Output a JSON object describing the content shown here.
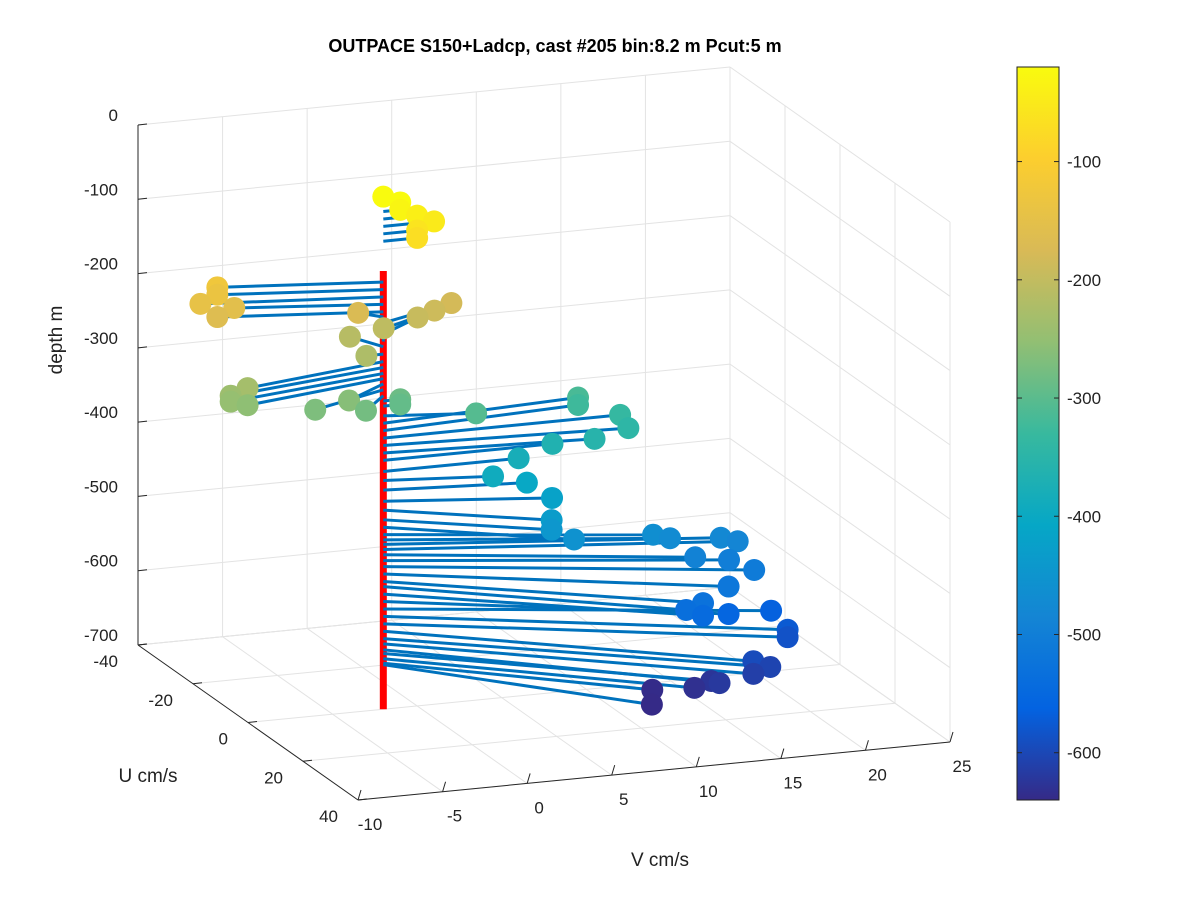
{
  "chart_data": {
    "type": "scatter",
    "title": "OUTPACE S150+Ladcp, cast #205 bin:8.2 m  Pcut:5 m",
    "xlabel": "V cm/s",
    "ylabel": "U cm/s",
    "zlabel": "depth m",
    "xlim": [
      -10,
      25
    ],
    "ylim": [
      -40,
      40
    ],
    "zlim": [
      -700,
      0
    ],
    "xticks": [
      "-10",
      "-5",
      "0",
      "5",
      "10",
      "15",
      "20",
      "25"
    ],
    "yticks": [
      "-40",
      "-20",
      "0",
      "20",
      "40"
    ],
    "zticks": [
      "0",
      "-100",
      "-200",
      "-300",
      "-400",
      "-500",
      "-600",
      "-700"
    ],
    "colorbar": {
      "range": [
        -640,
        -20
      ],
      "ticks": [
        "-100",
        "-200",
        "-300",
        "-400",
        "-500",
        "-600"
      ]
    },
    "grid": true,
    "reference_line": {
      "color": "#ff0000",
      "z": [
        -700,
        -110
      ],
      "v": -2,
      "u": 0
    },
    "profile_color": "#0072bd",
    "series": [
      {
        "points": [
          {
            "z": -10,
            "v": -2,
            "u": 0
          },
          {
            "z": -20,
            "v": -1,
            "u": 0
          },
          {
            "z": -30,
            "v": -1,
            "u": 0
          },
          {
            "z": -40,
            "v": 0,
            "u": 0
          },
          {
            "z": -50,
            "v": 1,
            "u": 0
          },
          {
            "z": -60,
            "v": 0,
            "u": 0
          },
          {
            "z": -70,
            "v": 0,
            "u": 0
          },
          {
            "z": -125,
            "v": -11,
            "u": -5
          },
          {
            "z": -135,
            "v": -11,
            "u": -5
          },
          {
            "z": -145,
            "v": -12,
            "u": -5
          },
          {
            "z": -155,
            "v": -10,
            "u": -5
          },
          {
            "z": -165,
            "v": -11,
            "u": -5
          },
          {
            "z": -172,
            "v": -3,
            "u": -3
          },
          {
            "z": -180,
            "v": 3,
            "u": -6
          },
          {
            "z": -188,
            "v": 2,
            "u": -6
          },
          {
            "z": -195,
            "v": 1,
            "u": -6
          },
          {
            "z": -205,
            "v": -1,
            "u": -6
          },
          {
            "z": -212,
            "v": -3,
            "u": -6
          },
          {
            "z": -222,
            "v": -3,
            "u": 0
          },
          {
            "z": -232,
            "v": -11,
            "u": 6
          },
          {
            "z": -240,
            "v": -12,
            "u": 6
          },
          {
            "z": -248,
            "v": -12,
            "u": 6
          },
          {
            "z": -255,
            "v": -11,
            "u": 6
          },
          {
            "z": -262,
            "v": -5,
            "u": 6
          },
          {
            "z": -270,
            "v": -7,
            "u": 6
          },
          {
            "z": -278,
            "v": -4,
            "u": 6
          },
          {
            "z": -285,
            "v": -1,
            "u": 0
          },
          {
            "z": -292,
            "v": -1,
            "u": 0
          },
          {
            "z": -305,
            "v": 3,
            "u": 3
          },
          {
            "z": -315,
            "v": 10,
            "u": -3
          },
          {
            "z": -325,
            "v": 10,
            "u": -3
          },
          {
            "z": -335,
            "v": 12,
            "u": 0
          },
          {
            "z": -345,
            "v": 12,
            "u": 3
          },
          {
            "z": -355,
            "v": 10,
            "u": 3
          },
          {
            "z": -365,
            "v": 8,
            "u": 0
          },
          {
            "z": -380,
            "v": 6,
            "u": 0
          },
          {
            "z": -392,
            "v": 4,
            "u": 3
          },
          {
            "z": -405,
            "v": 6,
            "u": 3
          },
          {
            "z": -420,
            "v": 7,
            "u": 6
          },
          {
            "z": -432,
            "v": 6,
            "u": 12
          },
          {
            "z": -445,
            "v": 6,
            "u": 12
          },
          {
            "z": -455,
            "v": 7,
            "u": 14
          },
          {
            "z": -465,
            "v": 12,
            "u": 12
          },
          {
            "z": -472,
            "v": 13,
            "u": 12
          },
          {
            "z": -478,
            "v": 16,
            "u": 12
          },
          {
            "z": -485,
            "v": 17,
            "u": 12
          },
          {
            "z": -492,
            "v": 14,
            "u": 15
          },
          {
            "z": -500,
            "v": 16,
            "u": 15
          },
          {
            "z": -508,
            "v": 17,
            "u": 18
          },
          {
            "z": -518,
            "v": 15,
            "u": 21
          },
          {
            "z": -528,
            "v": 13,
            "u": 24
          },
          {
            "z": -535,
            "v": 12,
            "u": 24
          },
          {
            "z": -545,
            "v": 13,
            "u": 24
          },
          {
            "z": -555,
            "v": 15,
            "u": 21
          },
          {
            "z": -565,
            "v": 18,
            "u": 18
          },
          {
            "z": -575,
            "v": 18,
            "u": 24
          },
          {
            "z": -585,
            "v": 18,
            "u": 24
          },
          {
            "z": -595,
            "v": 15,
            "u": 30
          },
          {
            "z": -605,
            "v": 16,
            "u": 30
          },
          {
            "z": -612,
            "v": 15,
            "u": 30
          },
          {
            "z": -620,
            "v": 13,
            "u": 30
          },
          {
            "z": -625,
            "v": 13,
            "u": 27
          },
          {
            "z": -632,
            "v": 12,
            "u": 27
          },
          {
            "z": -638,
            "v": 10,
            "u": 24
          },
          {
            "z": -640,
            "v": 9,
            "u": 30
          }
        ]
      }
    ]
  }
}
